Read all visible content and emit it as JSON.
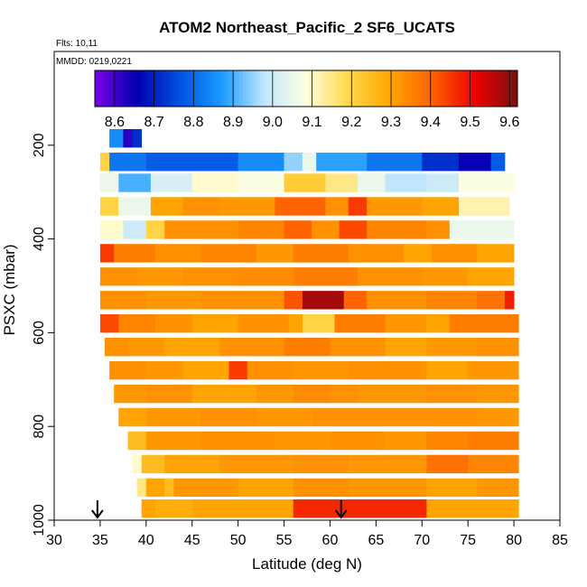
{
  "chart_data": {
    "type": "heatmap",
    "title": "ATOM2 Northeast_Pacific_2 SF6_UCATS",
    "flights_label": "Flts: 10,11",
    "dates_label": "MMDD: 0219,0221",
    "xlabel": "Latitude (deg N)",
    "ylabel": "PSXC (mbar)",
    "xlim": [
      30,
      85
    ],
    "ylim": [
      1000,
      0
    ],
    "x_ticks": [
      30,
      35,
      40,
      45,
      50,
      55,
      60,
      65,
      70,
      75,
      80,
      85
    ],
    "y_ticks": [
      200,
      400,
      600,
      800,
      1000
    ],
    "colorbar": {
      "range": [
        8.55,
        9.62
      ],
      "tick_values": [
        8.6,
        8.7,
        8.8,
        8.9,
        9.0,
        9.1,
        9.2,
        9.3,
        9.4,
        9.5,
        9.6
      ],
      "tick_labels": [
        "8.6",
        "8.7",
        "8.8",
        "8.9",
        "9.0",
        "9.1",
        "9.2",
        "9.3",
        "9.4",
        "9.5",
        "9.6"
      ],
      "colors": [
        "#7a00e8",
        "#0000b0",
        "#0050e0",
        "#1a9bff",
        "#bfe6ff",
        "#ffffe0",
        "#ffd84a",
        "#ffa500",
        "#ff6000",
        "#ee0000",
        "#7a1010"
      ]
    },
    "grid": false,
    "layers": [
      {
        "pressure": 185,
        "segments": [
          [
            36.0,
            37.5,
            8.85
          ],
          [
            37.5,
            38.5,
            8.62
          ],
          [
            38.5,
            39.5,
            8.72
          ]
        ]
      },
      {
        "pressure": 235,
        "segments": [
          [
            35.0,
            36.0,
            9.2
          ],
          [
            36.0,
            40.0,
            8.82
          ],
          [
            40.0,
            50.0,
            8.78
          ],
          [
            50.0,
            55.0,
            8.85
          ],
          [
            55.0,
            57.0,
            8.95
          ],
          [
            57.0,
            58.5,
            9.05
          ],
          [
            58.5,
            64.0,
            8.88
          ],
          [
            64.0,
            70.0,
            8.82
          ],
          [
            70.0,
            74.0,
            8.72
          ],
          [
            74.0,
            77.5,
            8.65
          ],
          [
            77.5,
            79.0,
            8.78
          ]
        ]
      },
      {
        "pressure": 280,
        "segments": [
          [
            35.0,
            37.0,
            9.05
          ],
          [
            37.0,
            40.5,
            8.9
          ],
          [
            40.5,
            45.0,
            9.02
          ],
          [
            45.0,
            50.0,
            9.1
          ],
          [
            50.0,
            55.0,
            9.08
          ],
          [
            55.0,
            59.5,
            9.22
          ],
          [
            59.5,
            63.0,
            9.15
          ],
          [
            63.0,
            66.0,
            9.05
          ],
          [
            66.0,
            70.5,
            8.98
          ],
          [
            70.5,
            74.0,
            9.0
          ],
          [
            74.0,
            80.0,
            9.08
          ]
        ]
      },
      {
        "pressure": 330,
        "segments": [
          [
            35.0,
            37.0,
            9.2
          ],
          [
            37.0,
            40.5,
            9.05
          ],
          [
            40.5,
            44.0,
            9.3
          ],
          [
            44.0,
            48.0,
            9.33
          ],
          [
            48.0,
            54.0,
            9.32
          ],
          [
            54.0,
            59.5,
            9.4
          ],
          [
            59.5,
            62.0,
            9.33
          ],
          [
            62.0,
            64.0,
            9.45
          ],
          [
            64.0,
            70.0,
            9.32
          ],
          [
            70.0,
            74.0,
            9.3
          ],
          [
            74.0,
            79.5,
            9.12
          ]
        ]
      },
      {
        "pressure": 380,
        "segments": [
          [
            35.0,
            37.5,
            9.1
          ],
          [
            37.5,
            40.0,
            9.0
          ],
          [
            40.0,
            42.0,
            9.2
          ],
          [
            42.0,
            50.0,
            9.33
          ],
          [
            50.0,
            55.0,
            9.35
          ],
          [
            55.0,
            58.0,
            9.4
          ],
          [
            58.0,
            61.0,
            9.33
          ],
          [
            61.0,
            64.0,
            9.43
          ],
          [
            64.0,
            70.5,
            9.35
          ],
          [
            70.5,
            73.0,
            9.33
          ],
          [
            73.0,
            80.0,
            9.05
          ]
        ]
      },
      {
        "pressure": 430,
        "segments": [
          [
            35.0,
            36.5,
            9.45
          ],
          [
            36.5,
            41.0,
            9.36
          ],
          [
            41.0,
            46.0,
            9.33
          ],
          [
            46.0,
            52.0,
            9.35
          ],
          [
            52.0,
            56.0,
            9.32
          ],
          [
            56.0,
            62.0,
            9.36
          ],
          [
            62.0,
            68.0,
            9.33
          ],
          [
            68.0,
            71.0,
            9.3
          ],
          [
            71.0,
            76.0,
            9.33
          ],
          [
            76.0,
            80.0,
            9.3
          ]
        ]
      },
      {
        "pressure": 480,
        "segments": [
          [
            35.0,
            39.0,
            9.33
          ],
          [
            39.0,
            44.0,
            9.32
          ],
          [
            44.0,
            50.0,
            9.33
          ],
          [
            50.0,
            56.0,
            9.34
          ],
          [
            56.0,
            63.0,
            9.36
          ],
          [
            63.0,
            70.0,
            9.33
          ],
          [
            70.0,
            75.0,
            9.32
          ],
          [
            75.0,
            80.0,
            9.3
          ]
        ]
      },
      {
        "pressure": 530,
        "segments": [
          [
            35.0,
            40.0,
            9.33
          ],
          [
            40.0,
            46.0,
            9.32
          ],
          [
            46.0,
            55.0,
            9.33
          ],
          [
            55.0,
            57.0,
            9.42
          ],
          [
            57.0,
            61.5,
            9.58
          ],
          [
            61.5,
            64.0,
            9.4
          ],
          [
            64.0,
            70.5,
            9.33
          ],
          [
            70.5,
            76.0,
            9.35
          ],
          [
            76.0,
            79.0,
            9.38
          ],
          [
            79.0,
            80.0,
            9.48
          ]
        ]
      },
      {
        "pressure": 580,
        "segments": [
          [
            35.0,
            37.0,
            9.43
          ],
          [
            37.0,
            41.0,
            9.35
          ],
          [
            41.0,
            45.0,
            9.33
          ],
          [
            45.0,
            50.0,
            9.3
          ],
          [
            50.0,
            55.5,
            9.33
          ],
          [
            55.5,
            57.0,
            9.3
          ],
          [
            57.0,
            60.5,
            9.2
          ],
          [
            60.5,
            66.0,
            9.36
          ],
          [
            66.0,
            70.5,
            9.32
          ],
          [
            70.5,
            73.0,
            9.3
          ],
          [
            73.0,
            80.5,
            9.36
          ]
        ]
      },
      {
        "pressure": 630,
        "segments": [
          [
            35.5,
            38.0,
            9.33
          ],
          [
            38.0,
            42.0,
            9.32
          ],
          [
            42.0,
            48.0,
            9.3
          ],
          [
            48.0,
            55.0,
            9.33
          ],
          [
            55.0,
            60.0,
            9.36
          ],
          [
            60.0,
            66.0,
            9.33
          ],
          [
            66.0,
            70.5,
            9.3
          ],
          [
            70.5,
            76.0,
            9.32
          ],
          [
            76.0,
            80.5,
            9.33
          ]
        ]
      },
      {
        "pressure": 680,
        "segments": [
          [
            36.0,
            40.0,
            9.33
          ],
          [
            40.0,
            44.0,
            9.32
          ],
          [
            44.0,
            49.0,
            9.3
          ],
          [
            49.0,
            51.0,
            9.45
          ],
          [
            51.0,
            56.0,
            9.33
          ],
          [
            56.0,
            62.0,
            9.32
          ],
          [
            62.0,
            70.5,
            9.33
          ],
          [
            70.5,
            75.0,
            9.3
          ],
          [
            75.0,
            80.5,
            9.32
          ]
        ]
      },
      {
        "pressure": 730,
        "segments": [
          [
            36.5,
            40.0,
            9.32
          ],
          [
            40.0,
            45.0,
            9.33
          ],
          [
            45.0,
            52.0,
            9.3
          ],
          [
            52.0,
            56.0,
            9.32
          ],
          [
            56.0,
            60.0,
            9.34
          ],
          [
            60.0,
            63.0,
            9.33
          ],
          [
            63.0,
            70.5,
            9.32
          ],
          [
            70.5,
            76.0,
            9.33
          ],
          [
            76.0,
            80.5,
            9.32
          ]
        ]
      },
      {
        "pressure": 780,
        "segments": [
          [
            37.0,
            40.0,
            9.3
          ],
          [
            40.0,
            46.0,
            9.32
          ],
          [
            46.0,
            52.0,
            9.33
          ],
          [
            52.0,
            58.0,
            9.32
          ],
          [
            58.0,
            64.0,
            9.33
          ],
          [
            64.0,
            70.5,
            9.33
          ],
          [
            70.5,
            76.0,
            9.33
          ],
          [
            76.0,
            80.5,
            9.32
          ]
        ]
      },
      {
        "pressure": 830,
        "segments": [
          [
            38.0,
            40.0,
            9.25
          ],
          [
            40.0,
            46.0,
            9.32
          ],
          [
            46.0,
            54.0,
            9.33
          ],
          [
            54.0,
            60.0,
            9.32
          ],
          [
            60.0,
            66.0,
            9.33
          ],
          [
            66.0,
            70.5,
            9.32
          ],
          [
            70.5,
            75.0,
            9.35
          ],
          [
            75.0,
            80.5,
            9.36
          ]
        ]
      },
      {
        "pressure": 880,
        "segments": [
          [
            38.5,
            39.5,
            9.1
          ],
          [
            39.5,
            42.0,
            9.25
          ],
          [
            42.0,
            48.0,
            9.3
          ],
          [
            48.0,
            56.0,
            9.32
          ],
          [
            56.0,
            62.0,
            9.33
          ],
          [
            62.0,
            70.5,
            9.32
          ],
          [
            70.5,
            75.0,
            9.38
          ],
          [
            75.0,
            80.5,
            9.35
          ]
        ]
      },
      {
        "pressure": 930,
        "segments": [
          [
            39.0,
            40.0,
            9.15
          ],
          [
            40.0,
            42.0,
            9.3
          ],
          [
            42.0,
            43.0,
            9.25
          ],
          [
            43.0,
            50.0,
            9.32
          ],
          [
            50.0,
            56.0,
            9.3
          ],
          [
            56.0,
            62.0,
            9.33
          ],
          [
            62.0,
            70.5,
            9.32
          ],
          [
            70.5,
            76.0,
            9.3
          ],
          [
            76.0,
            80.5,
            9.32
          ]
        ]
      },
      {
        "pressure": 975,
        "segments": [
          [
            39.5,
            41.0,
            9.3
          ],
          [
            41.0,
            45.0,
            9.28
          ],
          [
            45.0,
            56.0,
            9.3
          ],
          [
            56.0,
            70.5,
            9.47
          ],
          [
            70.5,
            80.5,
            9.3
          ]
        ]
      }
    ],
    "arrows_latitude": [
      34.7,
      61.2
    ]
  }
}
